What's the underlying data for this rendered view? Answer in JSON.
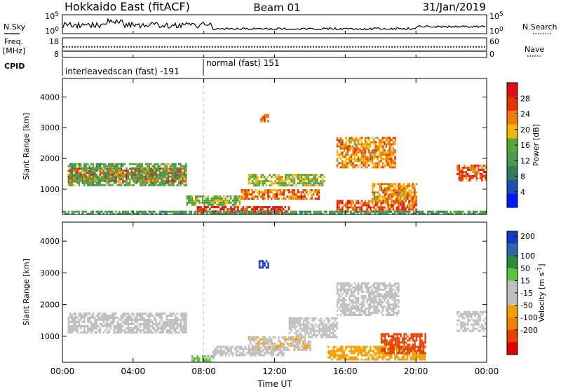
{
  "header": {
    "site": "Hokkaido East (fitACF)",
    "beam": "Beam 01",
    "date": "31/Jan/2019"
  },
  "left_labels": {
    "nsky": "N.Sky",
    "freq": "Freq.",
    "freq_unit": "[MHz]",
    "cpid": "CPID"
  },
  "right_labels": {
    "nsearch": "N.Search",
    "nave": "Nave"
  },
  "ticks": {
    "noise_left": [
      "10^5",
      "10^0"
    ],
    "noise_right": [
      "10^5",
      "10^0"
    ],
    "freq_left": [
      "18",
      "8"
    ],
    "freq_right": [
      "60",
      "0"
    ]
  },
  "cpid_segments": [
    {
      "label": "interleavedscan (fast) -191",
      "start": "00:00",
      "end": "08:00"
    },
    {
      "label": "normal (fast) 151",
      "start": "08:00",
      "end": "24:00"
    }
  ],
  "colors": {
    "power": [
      "#0018ff",
      "#1a4fb3",
      "#2e7d5b",
      "#4c9a4f",
      "#55a83c",
      "#f5b800",
      "#f07d00",
      "#e83000",
      "#e01010"
    ],
    "velocity": [
      "#1838c8",
      "#2c66a8",
      "#2e8b3e",
      "#5ec43a",
      "#bfbfbf",
      "#bfbfbf",
      "#f5a000",
      "#f08000",
      "#e64000",
      "#e00000"
    ],
    "axis": "#000000",
    "divider": "#bbbbbb"
  },
  "chart_data": [
    {
      "type": "heatmap",
      "title": "",
      "xlabel": "Time UT",
      "ylabel": "Slant Range [km]",
      "x_ticks": [
        "00:00",
        "04:00",
        "08:00",
        "12:00",
        "16:00",
        "20:00",
        "00:00"
      ],
      "y_ticks": [
        "1000",
        "2000",
        "3000",
        "4000"
      ],
      "ylim": [
        180,
        4600
      ],
      "colorbar_label": "Power [dB]",
      "colorbar_ticks": [
        "4",
        "8",
        "12",
        "16",
        "20",
        "24",
        "28"
      ],
      "colorbar_range": [
        0,
        32
      ],
      "regions": [
        {
          "t0": 0.3,
          "t1": 7.0,
          "r0": 1250,
          "r1": 1700,
          "value": 27
        },
        {
          "t0": 0.3,
          "t1": 7.0,
          "r0": 1100,
          "r1": 1850,
          "value": 14
        },
        {
          "t0": 7.6,
          "t1": 12.8,
          "r0": 200,
          "r1": 450,
          "value": 29
        },
        {
          "t0": 7.0,
          "t1": 10.0,
          "r0": 500,
          "r1": 800,
          "value": 16
        },
        {
          "t0": 10.0,
          "t1": 14.5,
          "r0": 700,
          "r1": 1000,
          "value": 24
        },
        {
          "t0": 10.5,
          "t1": 14.8,
          "r0": 1100,
          "r1": 1500,
          "value": 17
        },
        {
          "t0": 15.5,
          "t1": 20.0,
          "r0": 300,
          "r1": 650,
          "value": 26
        },
        {
          "t0": 17.5,
          "t1": 20.0,
          "r0": 650,
          "r1": 1200,
          "value": 22
        },
        {
          "t0": 15.5,
          "t1": 18.8,
          "r0": 1700,
          "r1": 2700,
          "value": 22
        },
        {
          "t0": 11.2,
          "t1": 11.6,
          "r0": 3200,
          "r1": 3450,
          "value": 24
        },
        {
          "t0": 22.3,
          "t1": 24.0,
          "r0": 1300,
          "r1": 1800,
          "value": 26
        },
        {
          "t0": 0.0,
          "t1": 24.0,
          "r0": 180,
          "r1": 300,
          "value": 13
        }
      ]
    },
    {
      "type": "heatmap",
      "title": "",
      "xlabel": "Time UT",
      "ylabel": "Slant Range [km]",
      "x_ticks": [
        "00:00",
        "04:00",
        "08:00",
        "12:00",
        "16:00",
        "20:00",
        "00:00"
      ],
      "y_ticks": [
        "1000",
        "2000",
        "3000",
        "4000"
      ],
      "ylim": [
        180,
        4600
      ],
      "colorbar_label": "Velocity [m s^-1]",
      "colorbar_ticks": [
        "200",
        "100",
        "50",
        "15",
        "-15",
        "-50",
        "-100",
        "-200"
      ],
      "colorbar_range": [
        -250,
        250
      ],
      "regions": [
        {
          "t0": 0.3,
          "t1": 7.0,
          "r0": 1150,
          "r1": 1750,
          "value": 0
        },
        {
          "t0": 7.3,
          "t1": 8.5,
          "r0": 200,
          "r1": 400,
          "value": 60
        },
        {
          "t0": 8.5,
          "t1": 12.5,
          "r0": 400,
          "r1": 700,
          "value": 25
        },
        {
          "t0": 10.5,
          "t1": 14.0,
          "r0": 600,
          "r1": 1000,
          "value": -40
        },
        {
          "t0": 12.8,
          "t1": 15.5,
          "r0": 1000,
          "r1": 1600,
          "value": 30
        },
        {
          "t0": 15.0,
          "t1": 20.5,
          "r0": 300,
          "r1": 700,
          "value": -80
        },
        {
          "t0": 18.0,
          "t1": 20.5,
          "r0": 500,
          "r1": 1100,
          "value": -180
        },
        {
          "t0": 15.5,
          "t1": 19.0,
          "r0": 1700,
          "r1": 2700,
          "value": 0
        },
        {
          "t0": 11.1,
          "t1": 11.6,
          "r0": 3200,
          "r1": 3400,
          "value": 230
        },
        {
          "t0": 22.3,
          "t1": 24.0,
          "r0": 1200,
          "r1": 1800,
          "value": 0
        }
      ]
    }
  ]
}
